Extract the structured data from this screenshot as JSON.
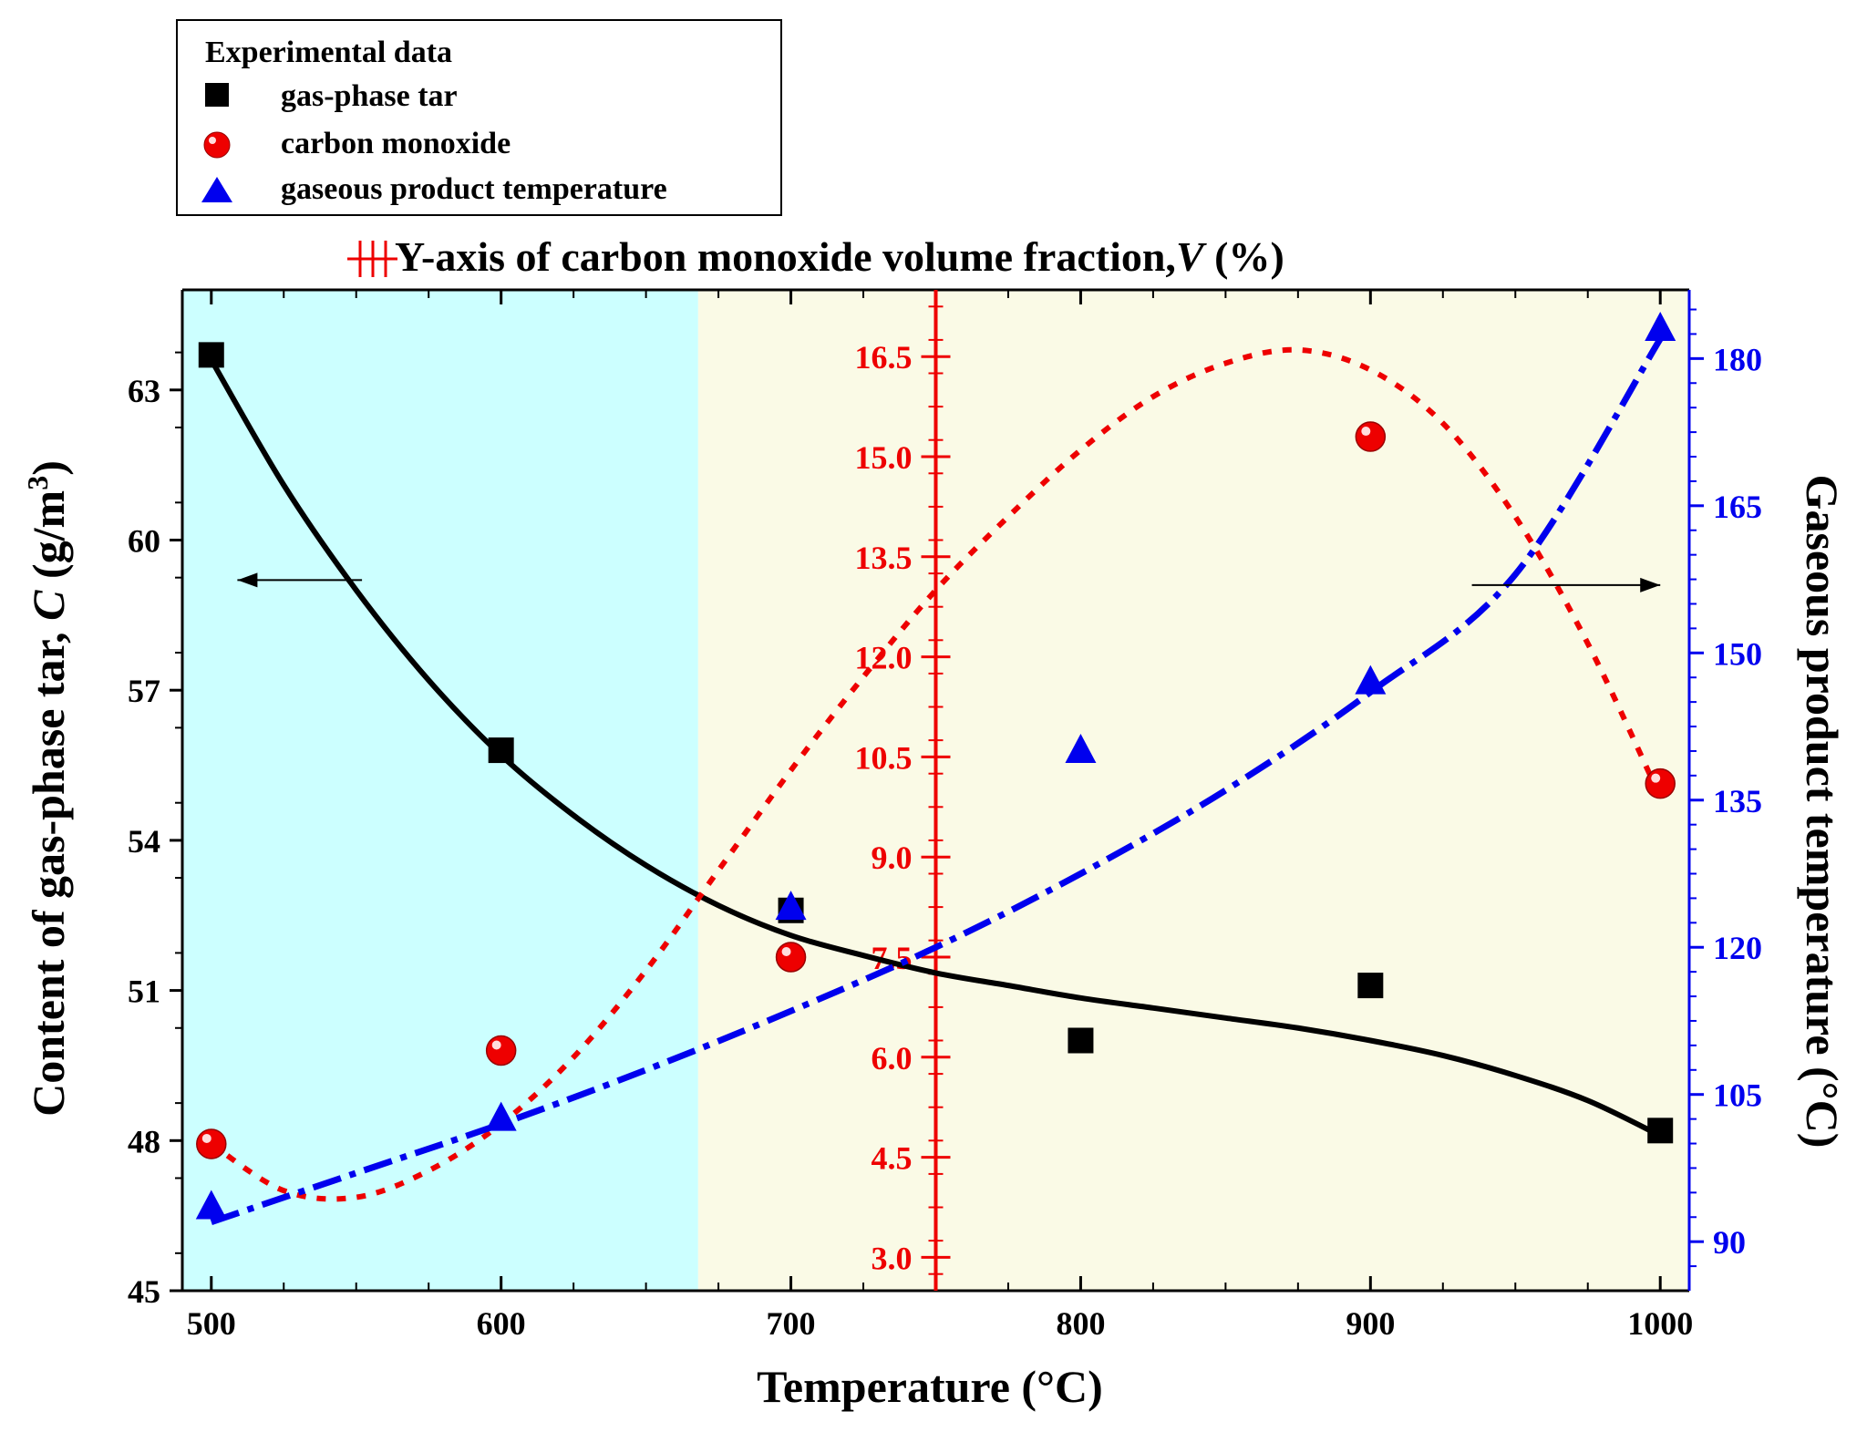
{
  "chart_data": {
    "type": "scatter",
    "xlabel": "Temperature (°C)",
    "x_ticks": [
      500,
      600,
      700,
      800,
      900,
      1000
    ],
    "xlim": [
      490,
      1010
    ],
    "left_axis": {
      "label_prefix": "Content of gas-phase tar, ",
      "label_var": "C",
      "label_unit": " (g/m",
      "label_sup": "3",
      "label_close": ")",
      "ylim": [
        45,
        65
      ],
      "ticks": [
        "45",
        "48",
        "51",
        "54",
        "57",
        "60",
        "63"
      ]
    },
    "middle_axis": {
      "title_prefix": "Y-axis of carbon monoxide  volume fraction,",
      "title_var": "V",
      "title_suffix": " (%)",
      "at_x": 750,
      "ylim": [
        2.5,
        17.5
      ],
      "ticks": [
        "3.0",
        "4.5",
        "6.0",
        "7.5",
        "9.0",
        "10.5",
        "12.0",
        "13.5",
        "15.0",
        "16.5"
      ]
    },
    "right_axis": {
      "label": "Gaseous product temperature (°C)",
      "ylim": [
        85,
        187
      ],
      "ticks": [
        "90",
        "105",
        "120",
        "135",
        "150",
        "165",
        "180"
      ]
    },
    "legend": {
      "title": "Experimental data",
      "items": [
        "gas-phase tar",
        "carbon monoxide",
        "gaseous product temperature"
      ]
    },
    "regions": [
      {
        "x_from": 490,
        "x_to": 668,
        "color": "#ccffff"
      },
      {
        "x_from": 668,
        "x_to": 1010,
        "color": "#fafae6"
      }
    ],
    "series": [
      {
        "name": "gas-phase tar",
        "axis": "left",
        "marker": "square",
        "color": "#000000",
        "points": [
          [
            500,
            63.7
          ],
          [
            600,
            55.8
          ],
          [
            700,
            52.6
          ],
          [
            800,
            50.0
          ],
          [
            900,
            51.1
          ],
          [
            1000,
            48.2
          ]
        ],
        "fit": [
          [
            500,
            63.6
          ],
          [
            525,
            61.1
          ],
          [
            550,
            59.0
          ],
          [
            575,
            57.2
          ],
          [
            600,
            55.7
          ],
          [
            625,
            54.5
          ],
          [
            650,
            53.5
          ],
          [
            675,
            52.7
          ],
          [
            700,
            52.1
          ],
          [
            725,
            51.7
          ],
          [
            750,
            51.35
          ],
          [
            775,
            51.1
          ],
          [
            800,
            50.85
          ],
          [
            825,
            50.65
          ],
          [
            850,
            50.45
          ],
          [
            875,
            50.25
          ],
          [
            900,
            50.0
          ],
          [
            925,
            49.7
          ],
          [
            950,
            49.3
          ],
          [
            975,
            48.8
          ],
          [
            1000,
            48.1
          ]
        ]
      },
      {
        "name": "carbon monoxide",
        "axis": "middle",
        "marker": "circle",
        "color": "#ee0000",
        "points": [
          [
            500,
            4.7
          ],
          [
            600,
            6.1
          ],
          [
            700,
            7.5
          ],
          [
            900,
            15.3
          ],
          [
            1000,
            10.1
          ]
        ],
        "fit": [
          [
            500,
            4.7
          ],
          [
            525,
            4.0
          ],
          [
            550,
            3.9
          ],
          [
            575,
            4.3
          ],
          [
            600,
            5.0
          ],
          [
            625,
            6.0
          ],
          [
            650,
            7.3
          ],
          [
            675,
            8.8
          ],
          [
            700,
            10.3
          ],
          [
            725,
            11.7
          ],
          [
            750,
            13.0
          ],
          [
            775,
            14.1
          ],
          [
            800,
            15.1
          ],
          [
            825,
            15.9
          ],
          [
            850,
            16.4
          ],
          [
            875,
            16.6
          ],
          [
            900,
            16.3
          ],
          [
            925,
            15.5
          ],
          [
            950,
            14.1
          ],
          [
            975,
            12.2
          ],
          [
            1000,
            9.9
          ]
        ]
      },
      {
        "name": "gaseous product temperature",
        "axis": "right",
        "marker": "triangle",
        "color": "#0000ee",
        "points": [
          [
            500,
            93.5
          ],
          [
            600,
            102.5
          ],
          [
            700,
            124.0
          ],
          [
            800,
            140.0
          ],
          [
            900,
            147.0
          ],
          [
            1000,
            183.0
          ]
        ],
        "fit": [
          [
            500,
            92.0
          ],
          [
            550,
            97.0
          ],
          [
            600,
            102.0
          ],
          [
            650,
            107.5
          ],
          [
            700,
            113.5
          ],
          [
            750,
            120.0
          ],
          [
            800,
            127.5
          ],
          [
            850,
            136.0
          ],
          [
            900,
            146.0
          ],
          [
            950,
            158.0
          ],
          [
            1000,
            182.0
          ]
        ]
      }
    ],
    "arrows": [
      {
        "points_to": "left",
        "x_from": 552,
        "x_to": 509,
        "y_left": 59.2
      },
      {
        "points_to": "right",
        "x_from": 935,
        "x_to": 1000,
        "y_left": 59.1
      }
    ]
  }
}
